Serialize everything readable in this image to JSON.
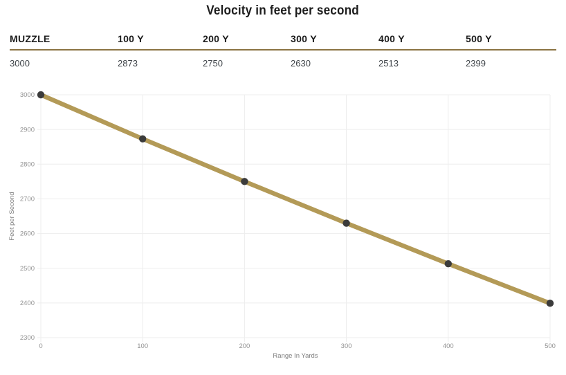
{
  "title": "Velocity in feet per second",
  "table": {
    "headers": [
      "MUZZLE",
      "100 Y",
      "200 Y",
      "300 Y",
      "400 Y",
      "500 Y"
    ],
    "values": [
      "3000",
      "2873",
      "2750",
      "2630",
      "2513",
      "2399"
    ]
  },
  "chart_data": {
    "type": "line",
    "title": "Velocity in feet per second",
    "x": [
      0,
      100,
      200,
      300,
      400,
      500
    ],
    "series": [
      {
        "name": "Velocity",
        "values": [
          3000,
          2873,
          2750,
          2630,
          2513,
          2399
        ]
      }
    ],
    "xlabel": "Range In Yards",
    "ylabel": "Feet per Second",
    "xlim": [
      0,
      500
    ],
    "ylim": [
      2300,
      3000
    ],
    "x_ticks": [
      0,
      100,
      200,
      300,
      400,
      500
    ],
    "y_ticks": [
      2300,
      2400,
      2500,
      2600,
      2700,
      2800,
      2900,
      3000
    ],
    "grid": true,
    "legend": "none",
    "line_color": "#b39a57",
    "marker_color": "#3b3b3b",
    "grid_color": "#ededed",
    "tick_label_color": "#929292",
    "axis_title_color": "#7d7d7d"
  },
  "theme": {
    "separator_color": "#8a7342",
    "heading_color": "#1d1d1d",
    "value_color": "#40454a",
    "background": "#ffffff"
  }
}
